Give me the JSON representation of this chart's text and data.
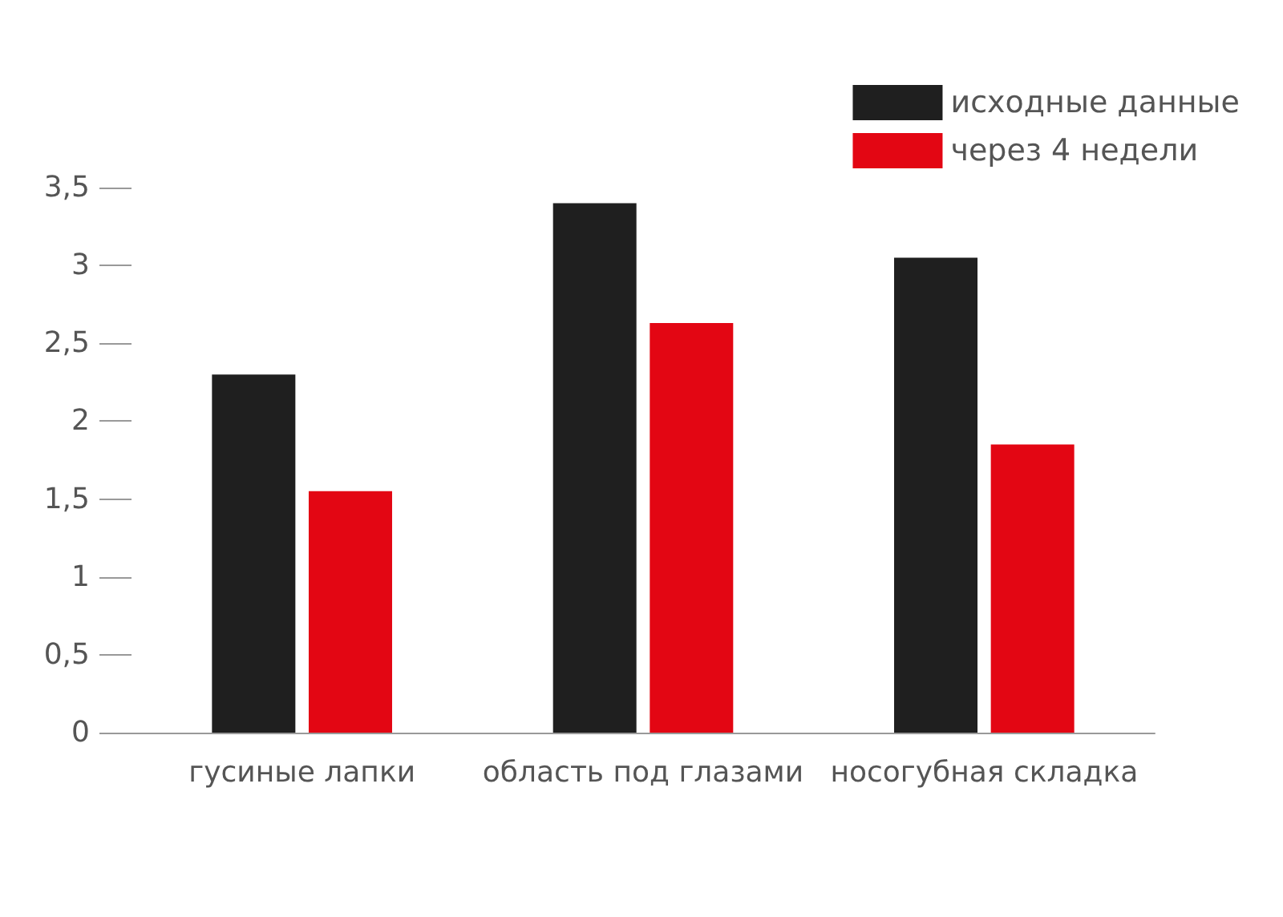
{
  "chart_data": {
    "type": "bar",
    "categories": [
      "гусиные лапки",
      "область под глазами",
      "носогубная складка"
    ],
    "series": [
      {
        "name": "исходные данные",
        "color": "#1f1f1f",
        "values": [
          2.3,
          3.4,
          3.05
        ]
      },
      {
        "name": "через 4 недели",
        "color": "#e30613",
        "values": [
          1.55,
          2.63,
          1.85
        ]
      }
    ],
    "ylim": [
      0,
      3.5
    ],
    "yticks": [
      0,
      {
        "value": 0.5,
        "label": "0,5"
      },
      1,
      {
        "value": 1.5,
        "label": "1,5"
      },
      2,
      {
        "value": 2.5,
        "label": "2,5"
      },
      3,
      {
        "value": 3.5,
        "label": "3,5"
      }
    ],
    "grid": false,
    "legend": "top right"
  }
}
